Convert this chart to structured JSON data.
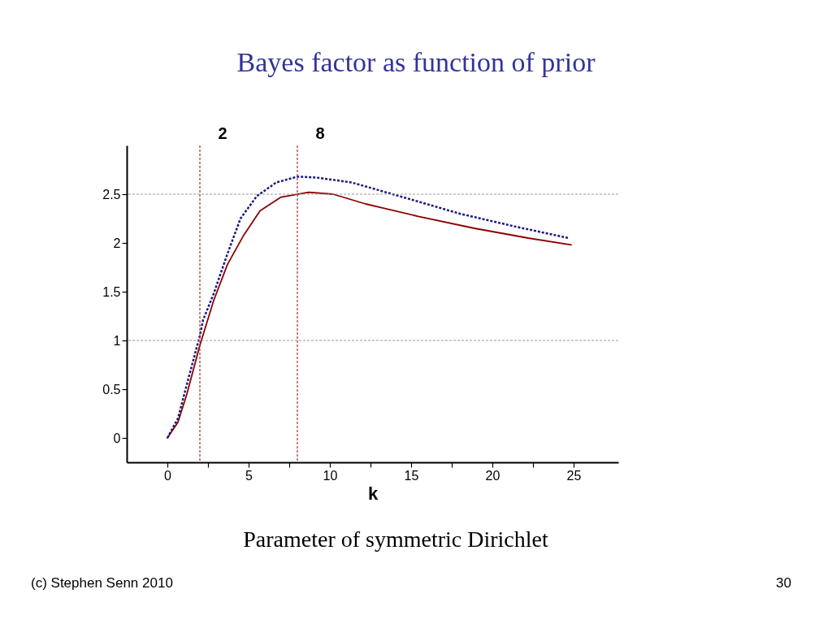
{
  "chart_data": {
    "type": "line",
    "title": "Bayes factor as function of prior",
    "xlabel": "k",
    "grid": false,
    "marker": "none",
    "xlim": [
      -2.5,
      27.75
    ],
    "ylim": [
      -0.25,
      3
    ],
    "xticks": [
      0,
      {
        "value": 2.5,
        "label": null
      },
      5,
      {
        "value": 7.5,
        "label": null
      },
      10,
      {
        "value": 12.5,
        "label": null
      },
      15,
      {
        "value": 17.5,
        "label": null
      },
      20,
      {
        "value": 22.5,
        "label": null
      },
      25
    ],
    "yticks": [
      0,
      0.5,
      1,
      1.5,
      2,
      2.5
    ],
    "series": [
      {
        "color": "#8b0000",
        "line_style": "solid",
        "x": [
          0,
          0.65,
          1.2,
          2,
          2.85,
          3.7,
          4.7,
          5.7,
          7,
          8.7,
          10.2,
          12.2,
          15.5,
          18.9,
          22.2,
          24.85
        ],
        "values": [
          0,
          0.16,
          0.45,
          0.95,
          1.41,
          1.78,
          2.08,
          2.33,
          2.47,
          2.52,
          2.5,
          2.4,
          2.27,
          2.15,
          2.05,
          1.98
        ]
      },
      {
        "color": "#1a1a80",
        "line_style": "dotted",
        "x": [
          0,
          0.65,
          1.2,
          2,
          2.2,
          2.85,
          3.7,
          4.5,
          5.5,
          6.7,
          8,
          9.2,
          11.35,
          14.7,
          18,
          21.35,
          24.7
        ],
        "values": [
          0,
          0.2,
          0.55,
          1.05,
          1.21,
          1.48,
          1.89,
          2.25,
          2.48,
          2.62,
          2.68,
          2.67,
          2.62,
          2.46,
          2.3,
          2.17,
          2.05
        ]
      }
    ],
    "ref_lines": [
      {
        "axis": "x",
        "value": 2,
        "label": "2",
        "color": "#a03030",
        "line_style": "dotted"
      },
      {
        "axis": "x",
        "value": 8,
        "label": "8",
        "color": "#a03030",
        "line_style": "dotted"
      },
      {
        "axis": "y",
        "value": 1,
        "color": "#999999",
        "line_style": "dotted"
      },
      {
        "axis": "y",
        "value": 2.5,
        "color": "#999999",
        "line_style": "dotted"
      }
    ],
    "annotations": [
      "Parameter of symmetric Dirichlet",
      "(c) Stephen Senn 2010",
      "30"
    ]
  }
}
